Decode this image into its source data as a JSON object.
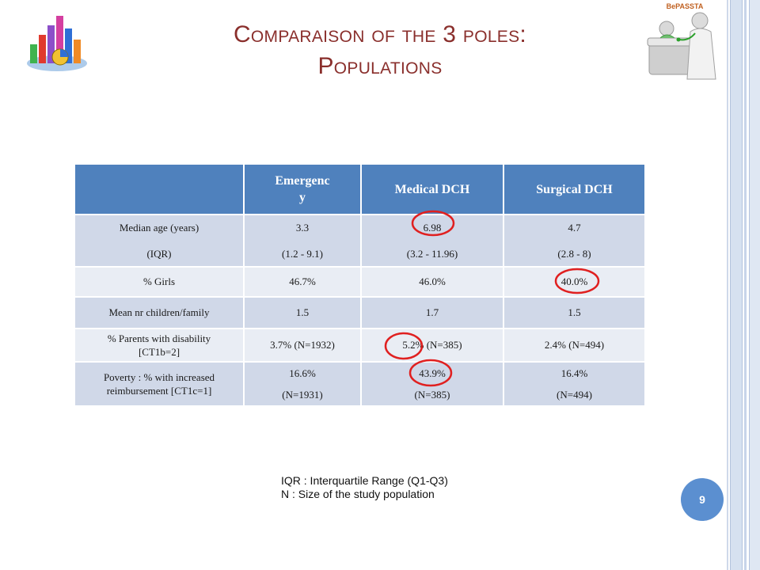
{
  "slide": {
    "title_line1": "Comparaison of the 3 poles:",
    "title_line2": "Populations",
    "logo_text": "BePASSTA",
    "page_number": "9"
  },
  "table": {
    "headers": [
      "",
      "Emergency",
      "Medical DCH",
      "Surgical DCH"
    ],
    "rows": [
      {
        "label": [
          "Median age (years)",
          "(IQR)"
        ],
        "values": [
          [
            "3.3",
            "(1.2 - 9.1)"
          ],
          [
            "6.98",
            "(3.2 - 11.96)"
          ],
          [
            "4.7",
            "(2.8 - 8)"
          ]
        ],
        "circled": [
          false,
          true,
          false
        ]
      },
      {
        "label": [
          "% Girls"
        ],
        "values": [
          [
            "46.7%"
          ],
          [
            "46.0%"
          ],
          [
            "40.0%"
          ]
        ],
        "circled": [
          false,
          false,
          true
        ]
      },
      {
        "label": [
          "Mean nr children/family"
        ],
        "values": [
          [
            "1.5"
          ],
          [
            "1.7"
          ],
          [
            "1.5"
          ]
        ],
        "circled": [
          false,
          false,
          false
        ]
      },
      {
        "label": [
          "% Parents with disability",
          "[CT1b=2]"
        ],
        "values": [
          [
            "3.7%  (N=1932)"
          ],
          [
            "5.2%  (N=385)"
          ],
          [
            "2.4% (N=494)"
          ]
        ],
        "circled": [
          false,
          true,
          false
        ]
      },
      {
        "label": [
          "Poverty : % with increased",
          "reimbursement [CT1c=1]"
        ],
        "values": [
          [
            "16.6%",
            "(N=1931)"
          ],
          [
            "43.9%",
            "(N=385)"
          ],
          [
            "16.4%",
            "(N=494)"
          ]
        ],
        "circled": [
          false,
          true,
          false
        ]
      }
    ]
  },
  "footnotes": [
    "IQR : Interquartile Range (Q1-Q3)",
    "N : Size of the study population"
  ],
  "colors": {
    "title": "#8a2f2c",
    "header_bg": "#4f81bd",
    "row_odd": "#d0d8e8",
    "row_even": "#e9edf4",
    "highlight_circle": "#e02020",
    "page_badge": "#5b8fd0"
  }
}
